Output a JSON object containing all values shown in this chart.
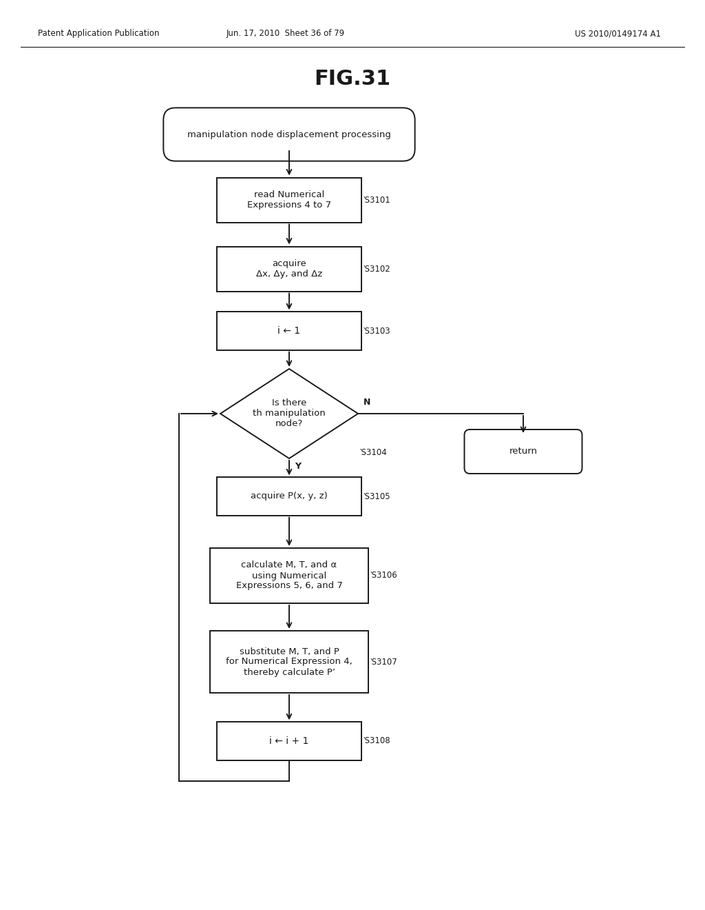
{
  "bg_color": "#ffffff",
  "header_left": "Patent Application Publication",
  "header_mid": "Jun. 17, 2010  Sheet 36 of 79",
  "header_right": "US 2010/0149174 A1",
  "title": "FIG.31",
  "text_color": "#1a1a1a",
  "box_color": "#ffffff",
  "box_edge": "#1a1a1a",
  "arrow_color": "#1a1a1a",
  "nodes": {
    "start_text": "manipulation node displacement processing",
    "s3101_text": "read Numerical\nExpressions 4 to 7",
    "s3102_text": "acquire\nΔx, Δy, and Δz",
    "s3103_text": "i ← 1",
    "s3104_text": "Is there\nth manipulation\nnode?",
    "s3105_text": "acquire P(x, y, z)",
    "s3106_text": "calculate M, T, and α\nusing Numerical\nExpressions 5, 6, and 7",
    "s3107_text": "substitute M, T, and P\nfor Numerical Expression 4,\nthereby calculate P’",
    "s3108_text": "i ← i + 1",
    "return_text": "return"
  }
}
